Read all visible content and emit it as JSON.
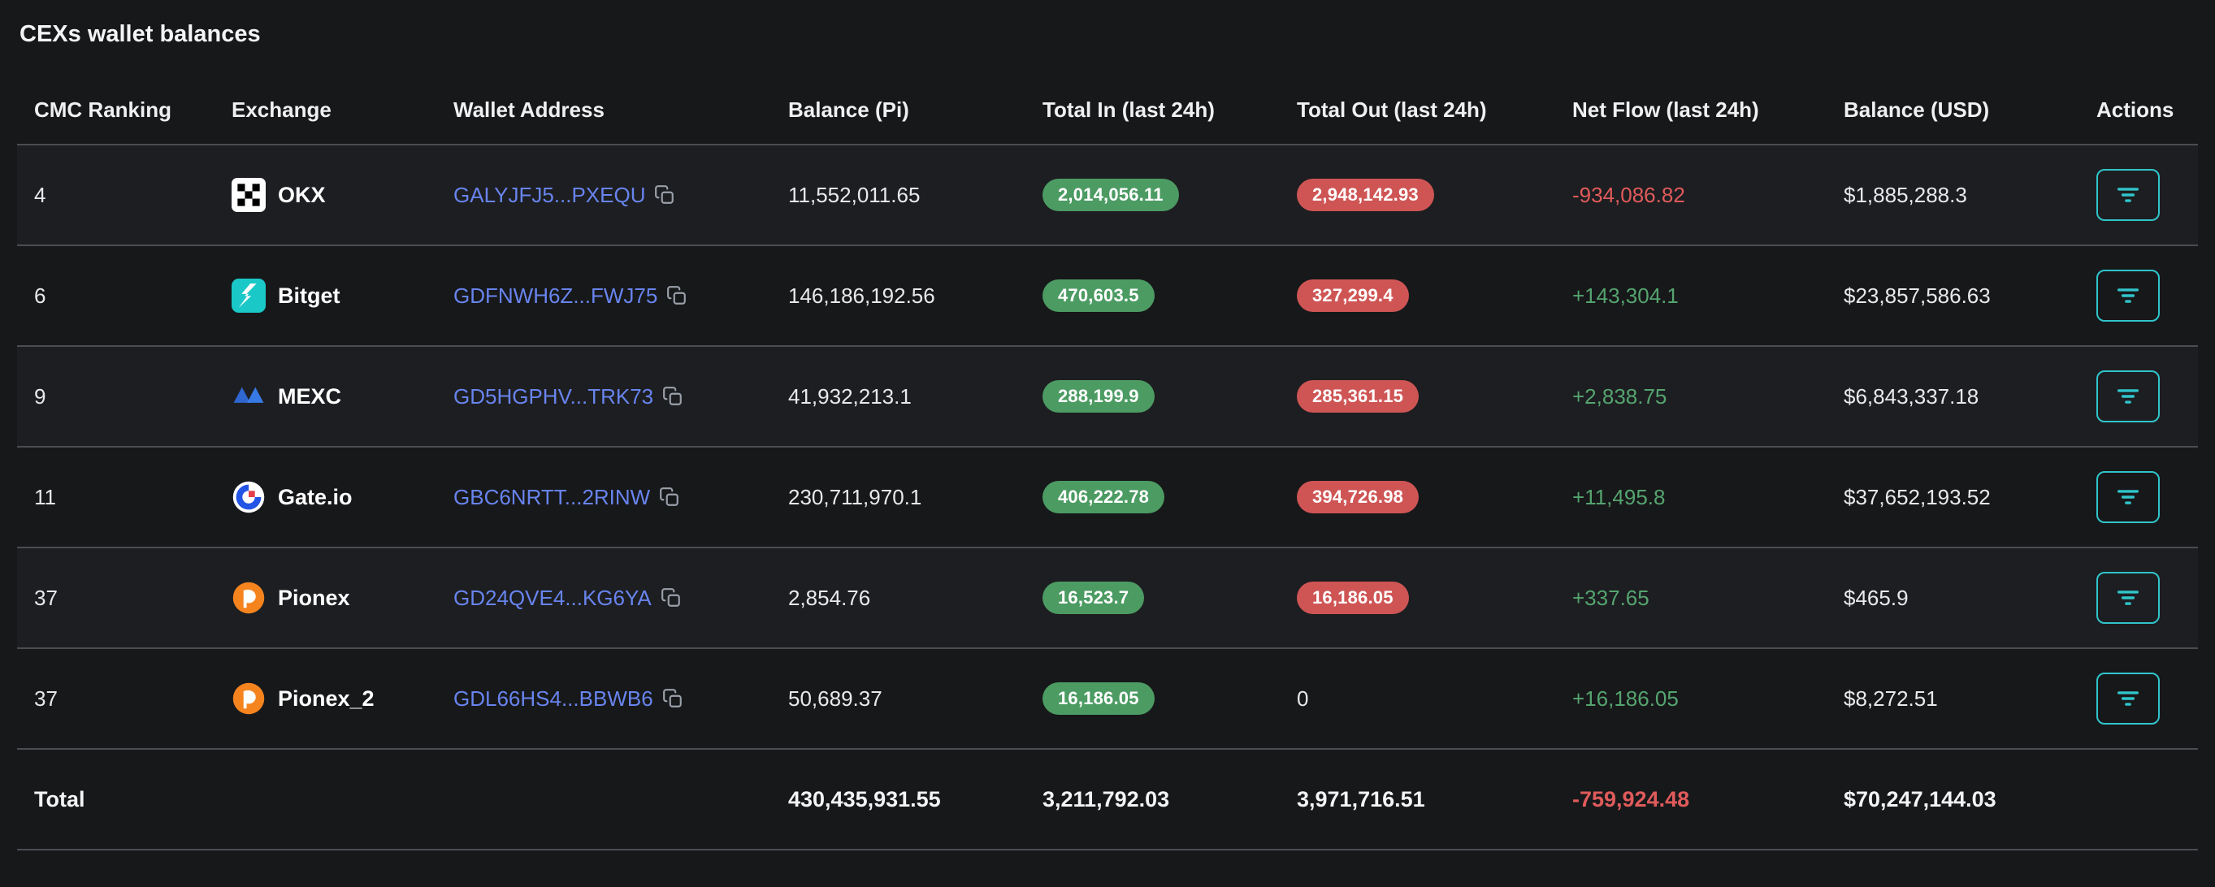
{
  "page": {
    "title": "CEXs wallet balances"
  },
  "table": {
    "columns": [
      "CMC Ranking",
      "Exchange",
      "Wallet Address",
      "Balance (Pi)",
      "Total In (last 24h)",
      "Total Out (last 24h)",
      "Net Flow (last 24h)",
      "Balance (USD)",
      "Actions"
    ],
    "rows": [
      {
        "rank": "4",
        "exchange": {
          "name": "OKX",
          "icon": "okx"
        },
        "address": "GALYJFJ5...PXEQU",
        "balance_pi": "11,552,011.65",
        "total_in": "2,014,056.11",
        "total_out": "2,948,142.93",
        "net_flow": "-934,086.82",
        "balance_usd": "$1,885,288.3"
      },
      {
        "rank": "6",
        "exchange": {
          "name": "Bitget",
          "icon": "bitget"
        },
        "address": "GDFNWH6Z...FWJ75",
        "balance_pi": "146,186,192.56",
        "total_in": "470,603.5",
        "total_out": "327,299.4",
        "net_flow": "+143,304.1",
        "balance_usd": "$23,857,586.63"
      },
      {
        "rank": "9",
        "exchange": {
          "name": "MEXC",
          "icon": "mexc"
        },
        "address": "GD5HGPHV...TRK73",
        "balance_pi": "41,932,213.1",
        "total_in": "288,199.9",
        "total_out": "285,361.15",
        "net_flow": "+2,838.75",
        "balance_usd": "$6,843,337.18"
      },
      {
        "rank": "11",
        "exchange": {
          "name": "Gate.io",
          "icon": "gateio"
        },
        "address": "GBC6NRTT...2RINW",
        "balance_pi": "230,711,970.1",
        "total_in": "406,222.78",
        "total_out": "394,726.98",
        "net_flow": "+11,495.8",
        "balance_usd": "$37,652,193.52"
      },
      {
        "rank": "37",
        "exchange": {
          "name": "Pionex",
          "icon": "pionex"
        },
        "address": "GD24QVE4...KG6YA",
        "balance_pi": "2,854.76",
        "total_in": "16,523.7",
        "total_out": "16,186.05",
        "net_flow": "+337.65",
        "balance_usd": "$465.9"
      },
      {
        "rank": "37",
        "exchange": {
          "name": "Pionex_2",
          "icon": "pionex"
        },
        "address": "GDL66HS4...BBWB6",
        "balance_pi": "50,689.37",
        "total_in": "16,186.05",
        "total_out": "0",
        "net_flow": "+16,186.05",
        "balance_usd": "$8,272.51"
      }
    ],
    "total": {
      "label": "Total",
      "balance_pi": "430,435,931.55",
      "total_in": "3,211,792.03",
      "total_out": "3,971,716.51",
      "net_flow": "-759,924.48",
      "balance_usd": "$70,247,144.03"
    }
  },
  "colors": {
    "positive_text": "#55a46f",
    "negative_text": "#e05b5b",
    "in_badge": "#4c9b63",
    "out_badge": "#cf5555",
    "address_link": "#6884ee",
    "action_accent": "#30c5cb"
  },
  "icons": {
    "copy": "copy-icon",
    "action_button": "filter-lines-icon"
  }
}
